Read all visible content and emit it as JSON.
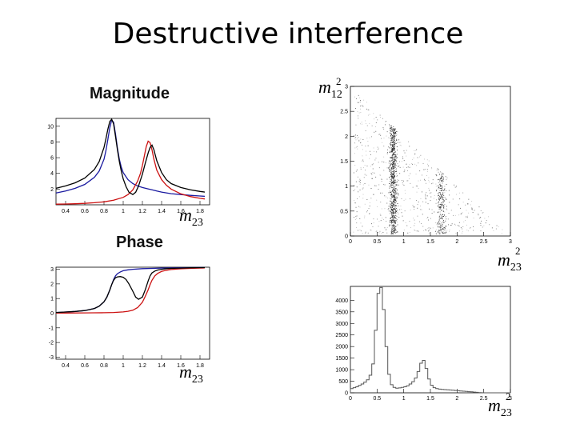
{
  "slide": {
    "title": "Destructive interference"
  },
  "labels": {
    "magnitude": "Magnitude",
    "phase": "Phase",
    "m12": {
      "base": "m",
      "sub": "12",
      "sup": "2"
    },
    "m23": {
      "base": "m",
      "sub": "23",
      "sup": "2"
    },
    "m23_plain": {
      "base": "m",
      "sub": "23"
    }
  },
  "colors": {
    "blue": "#1a1aa0",
    "red": "#cc1111",
    "black": "#000000",
    "hist": "#555555",
    "dots": "#222222"
  },
  "chart_data": [
    {
      "id": "magnitude",
      "type": "line",
      "title": "Magnitude",
      "xlabel": "m23",
      "xlim": [
        0.3,
        1.9
      ],
      "ylim": [
        0,
        11
      ],
      "xticks": [
        0.4,
        0.6,
        0.8,
        1.0,
        1.2,
        1.4,
        1.6,
        1.8
      ],
      "yticks": [
        2,
        4,
        6,
        8,
        10
      ],
      "series": [
        {
          "color": "blue",
          "x": [
            0.3,
            0.4,
            0.5,
            0.6,
            0.7,
            0.75,
            0.8,
            0.82,
            0.84,
            0.86,
            0.88,
            0.9,
            0.92,
            0.94,
            0.96,
            0.98,
            1.0,
            1.05,
            1.1,
            1.15,
            1.2,
            1.25,
            1.3,
            1.35,
            1.4,
            1.5,
            1.6,
            1.7,
            1.8,
            1.85
          ],
          "y": [
            1.5,
            1.75,
            2.1,
            2.6,
            3.5,
            4.3,
            5.8,
            6.9,
            8.3,
            9.8,
            10.8,
            10.5,
            9.0,
            7.2,
            5.8,
            4.8,
            4.1,
            3.2,
            2.7,
            2.4,
            2.2,
            2.05,
            1.9,
            1.75,
            1.62,
            1.42,
            1.3,
            1.2,
            1.12,
            1.08
          ]
        },
        {
          "color": "red",
          "x": [
            0.3,
            0.4,
            0.5,
            0.6,
            0.7,
            0.8,
            0.9,
            1.0,
            1.05,
            1.1,
            1.15,
            1.18,
            1.2,
            1.22,
            1.24,
            1.26,
            1.28,
            1.3,
            1.32,
            1.35,
            1.4,
            1.45,
            1.5,
            1.6,
            1.7,
            1.8,
            1.85
          ],
          "y": [
            0.08,
            0.1,
            0.13,
            0.18,
            0.26,
            0.38,
            0.58,
            0.95,
            1.3,
            1.9,
            3.0,
            4.0,
            5.0,
            6.2,
            7.4,
            8.1,
            7.9,
            7.0,
            5.8,
            4.4,
            3.2,
            2.5,
            2.0,
            1.4,
            1.05,
            0.82,
            0.74
          ]
        },
        {
          "color": "black",
          "x": [
            0.3,
            0.4,
            0.5,
            0.6,
            0.7,
            0.75,
            0.8,
            0.82,
            0.84,
            0.86,
            0.88,
            0.9,
            0.92,
            0.94,
            0.96,
            0.98,
            1.0,
            1.03,
            1.06,
            1.1,
            1.13,
            1.16,
            1.2,
            1.23,
            1.26,
            1.28,
            1.3,
            1.32,
            1.35,
            1.4,
            1.45,
            1.5,
            1.6,
            1.7,
            1.8,
            1.85
          ],
          "y": [
            2.1,
            2.4,
            2.8,
            3.4,
            4.5,
            5.5,
            7.3,
            8.4,
            9.6,
            10.6,
            10.9,
            10.3,
            8.7,
            7.0,
            5.5,
            4.3,
            3.3,
            2.3,
            1.6,
            1.3,
            1.6,
            2.4,
            3.9,
            5.3,
            6.6,
            7.3,
            7.6,
            7.0,
            5.6,
            4.1,
            3.2,
            2.7,
            2.2,
            1.9,
            1.7,
            1.62
          ]
        }
      ]
    },
    {
      "id": "phase",
      "type": "line",
      "title": "Phase",
      "xlabel": "m23",
      "xlim": [
        0.3,
        1.9
      ],
      "ylim": [
        -3.14,
        3.14
      ],
      "xticks": [
        0.4,
        0.6,
        0.8,
        1.0,
        1.2,
        1.4,
        1.6,
        1.8
      ],
      "yticks": [
        -3,
        -2,
        -1,
        0,
        1,
        2,
        3
      ],
      "series": [
        {
          "color": "blue",
          "x": [
            0.3,
            0.4,
            0.5,
            0.6,
            0.7,
            0.75,
            0.8,
            0.83,
            0.86,
            0.88,
            0.9,
            0.92,
            0.94,
            0.97,
            1.0,
            1.05,
            1.1,
            1.2,
            1.3,
            1.4,
            1.5,
            1.6,
            1.7,
            1.8,
            1.85
          ],
          "y": [
            0.05,
            0.08,
            0.12,
            0.18,
            0.32,
            0.48,
            0.78,
            1.1,
            1.58,
            1.95,
            2.3,
            2.55,
            2.7,
            2.82,
            2.9,
            2.96,
            3.0,
            3.04,
            3.06,
            3.08,
            3.09,
            3.1,
            3.11,
            3.12,
            3.12
          ]
        },
        {
          "color": "red",
          "x": [
            0.3,
            0.4,
            0.5,
            0.6,
            0.7,
            0.8,
            0.9,
            1.0,
            1.05,
            1.1,
            1.15,
            1.2,
            1.23,
            1.26,
            1.28,
            1.3,
            1.33,
            1.36,
            1.4,
            1.45,
            1.5,
            1.6,
            1.7,
            1.8,
            1.85
          ],
          "y": [
            0.01,
            0.01,
            0.015,
            0.02,
            0.025,
            0.035,
            0.05,
            0.09,
            0.13,
            0.2,
            0.38,
            0.75,
            1.15,
            1.6,
            1.95,
            2.25,
            2.55,
            2.72,
            2.85,
            2.93,
            2.98,
            3.03,
            3.06,
            3.08,
            3.09
          ]
        },
        {
          "color": "black",
          "x": [
            0.3,
            0.4,
            0.5,
            0.6,
            0.7,
            0.75,
            0.8,
            0.83,
            0.86,
            0.88,
            0.9,
            0.92,
            0.94,
            0.97,
            1.0,
            1.03,
            1.06,
            1.1,
            1.13,
            1.16,
            1.2,
            1.23,
            1.26,
            1.28,
            1.3,
            1.33,
            1.36,
            1.4,
            1.45,
            1.5,
            1.6,
            1.7,
            1.8,
            1.85
          ],
          "y": [
            0.05,
            0.08,
            0.12,
            0.18,
            0.32,
            0.48,
            0.78,
            1.1,
            1.58,
            1.95,
            2.25,
            2.42,
            2.48,
            2.5,
            2.45,
            2.3,
            2.0,
            1.5,
            1.1,
            0.95,
            1.1,
            1.6,
            2.2,
            2.55,
            2.75,
            2.88,
            2.95,
            3.0,
            3.04,
            3.06,
            3.08,
            3.1,
            3.11,
            3.12
          ]
        }
      ]
    },
    {
      "id": "dalitz",
      "type": "scatter",
      "xlabel": "m23^2",
      "ylabel": "m12^2",
      "xlim": [
        0,
        3
      ],
      "ylim": [
        0,
        3
      ],
      "xticks": [
        0,
        0.5,
        1,
        1.5,
        2,
        2.5,
        3
      ],
      "yticks": [
        0,
        0.5,
        1,
        1.5,
        2,
        2.5,
        3
      ],
      "bands": [
        {
          "center": 0.8,
          "width": 0.06,
          "weight": 0.35
        },
        {
          "center": 1.7,
          "width": 0.07,
          "weight": 0.2
        }
      ],
      "boundary_corners": [
        [
          0.05,
          2.95
        ],
        [
          0.05,
          0.05
        ],
        [
          2.95,
          0.05
        ]
      ]
    },
    {
      "id": "projection",
      "type": "histogram",
      "xlabel": "m23^2",
      "xlim": [
        0,
        3
      ],
      "ylim": [
        0,
        4600
      ],
      "xticks": [
        0,
        0.5,
        1,
        1.5,
        2,
        2.5,
        3
      ],
      "yticks": [
        0,
        500,
        1000,
        1500,
        2000,
        2500,
        3000,
        3500,
        4000
      ],
      "bin_width": 0.05,
      "counts": [
        180,
        220,
        260,
        320,
        380,
        460,
        560,
        760,
        1250,
        2700,
        4300,
        4550,
        3600,
        2000,
        800,
        350,
        230,
        200,
        210,
        230,
        260,
        300,
        380,
        480,
        640,
        920,
        1280,
        1400,
        1050,
        600,
        330,
        220,
        180,
        160,
        150,
        140,
        130,
        120,
        110,
        100,
        90,
        80,
        70,
        60,
        50,
        40,
        30,
        20,
        10,
        5,
        0,
        0,
        0,
        0,
        0,
        0,
        0,
        0,
        0,
        0
      ]
    }
  ]
}
